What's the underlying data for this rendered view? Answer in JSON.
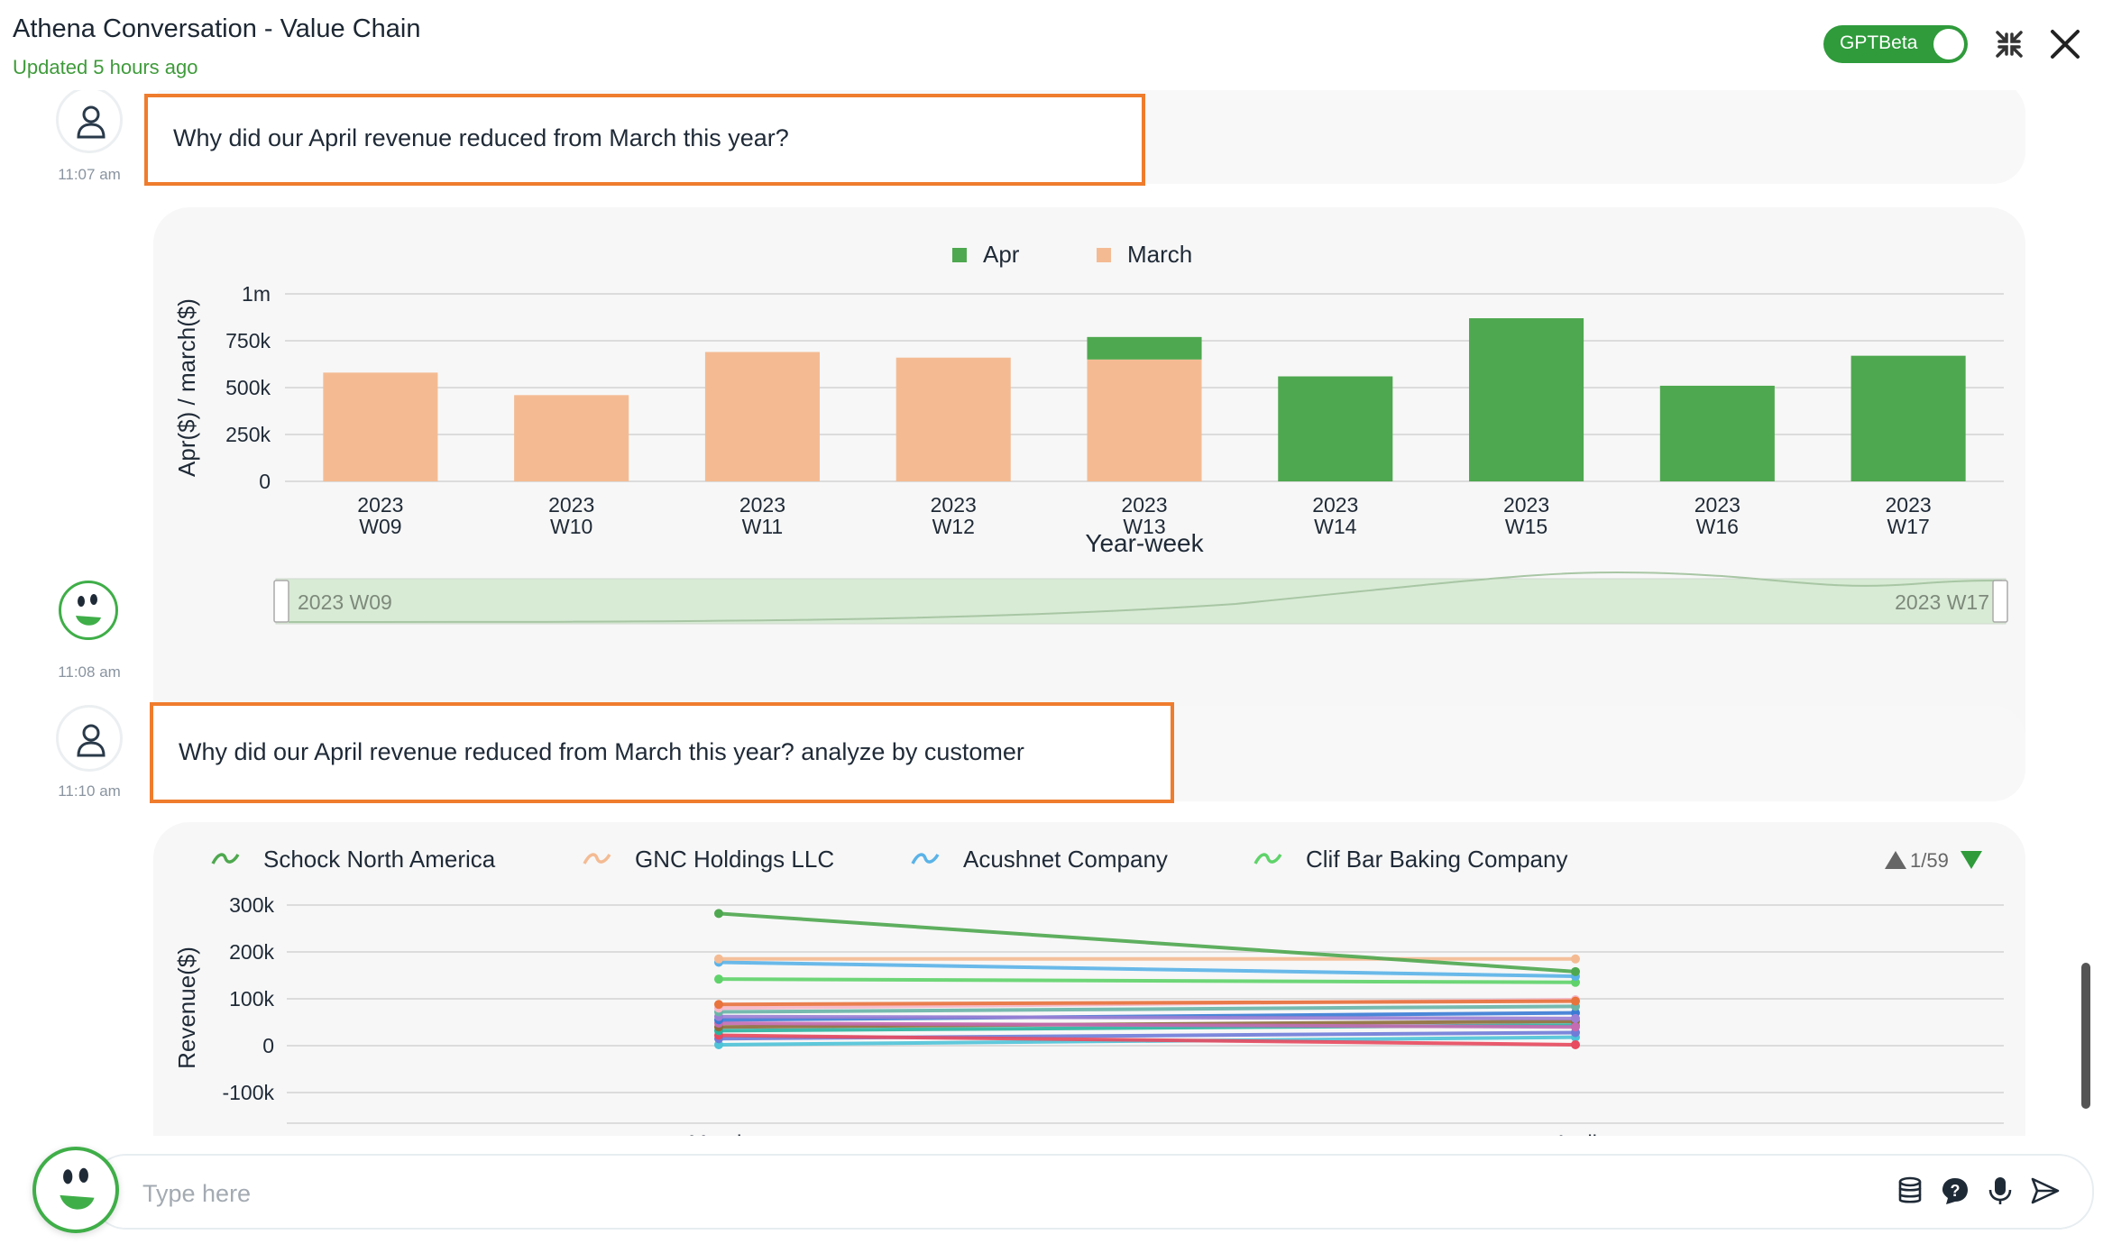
{
  "header": {
    "title": "Athena Conversation - Value Chain",
    "updated": "Updated 5 hours ago",
    "toggle_label": "GPTBeta"
  },
  "messages": [
    {
      "role": "user",
      "time": "11:07 am",
      "text": "Why did our April revenue reduced from March this year?"
    },
    {
      "role": "bot",
      "time": "11:08 am"
    },
    {
      "role": "user",
      "time": "11:10 am",
      "text": "Why did our April revenue reduced from March this year? analyze by customer"
    }
  ],
  "chart1": {
    "type": "bar",
    "legend": [
      "Apr",
      "March"
    ],
    "colors": {
      "Apr": "#4ea84f",
      "March": "#f4bb93"
    },
    "categories": [
      "2023\nW09",
      "2023\nW10",
      "2023\nW11",
      "2023\nW12",
      "2023\nW13",
      "2023\nW14",
      "2023\nW15",
      "2023\nW16",
      "2023\nW17"
    ],
    "series": [
      {
        "name": "March",
        "values": [
          580000,
          460000,
          690000,
          660000,
          650000,
          0,
          0,
          0,
          0
        ]
      },
      {
        "name": "Apr",
        "values": [
          0,
          0,
          0,
          0,
          120000,
          560000,
          870000,
          510000,
          670000
        ]
      }
    ],
    "ylabel": "Apr($) / march($)",
    "xlabel": "Year-week",
    "ylim": [
      0,
      1000000
    ],
    "yticks": [
      "0",
      "250k",
      "500k",
      "750k",
      "1m"
    ],
    "slider": {
      "start": "2023 W09",
      "end": "2023 W17"
    }
  },
  "chart2": {
    "type": "line",
    "legend": [
      {
        "name": "Schock North America",
        "color": "#4ea84f"
      },
      {
        "name": "GNC Holdings LLC",
        "color": "#f4bb93"
      },
      {
        "name": "Acushnet Company",
        "color": "#5ab3e8"
      },
      {
        "name": "Clif Bar Baking Company",
        "color": "#5fd36a"
      }
    ],
    "pager": "1/59",
    "ylabel": "Revenue($)",
    "yticks": [
      "-100k",
      "0",
      "100k",
      "200k",
      "300k"
    ],
    "ylim": [
      -100000,
      300000
    ],
    "categories": [
      "March",
      "April"
    ],
    "series": [
      {
        "color": "#4ea84f",
        "values": [
          282000,
          158000
        ]
      },
      {
        "color": "#f4bb93",
        "values": [
          185000,
          185000
        ]
      },
      {
        "color": "#5ab3e8",
        "values": [
          178000,
          148000
        ]
      },
      {
        "color": "#5fd36a",
        "values": [
          142000,
          135000
        ]
      },
      {
        "color": "#e8733c",
        "values": [
          88000,
          95000
        ]
      },
      {
        "color": "#f6b7c8",
        "values": [
          80000,
          98000
        ]
      },
      {
        "color": "#6ab4a8",
        "values": [
          72000,
          84000
        ]
      },
      {
        "color": "#9b7fd4",
        "values": [
          62000,
          58000
        ]
      },
      {
        "color": "#3a7bd5",
        "values": [
          55000,
          70000
        ]
      },
      {
        "color": "#c46bb2",
        "values": [
          48000,
          40000
        ]
      },
      {
        "color": "#8c6d3a",
        "values": [
          40000,
          52000
        ]
      },
      {
        "color": "#2bb3a0",
        "values": [
          32000,
          44000
        ]
      },
      {
        "color": "#e84a5f",
        "values": [
          22000,
          2000
        ]
      },
      {
        "color": "#6f7dd8",
        "values": [
          15000,
          28000
        ]
      },
      {
        "color": "#4fc3d8",
        "values": [
          2000,
          18000
        ]
      }
    ]
  },
  "input": {
    "placeholder": "Type here"
  }
}
